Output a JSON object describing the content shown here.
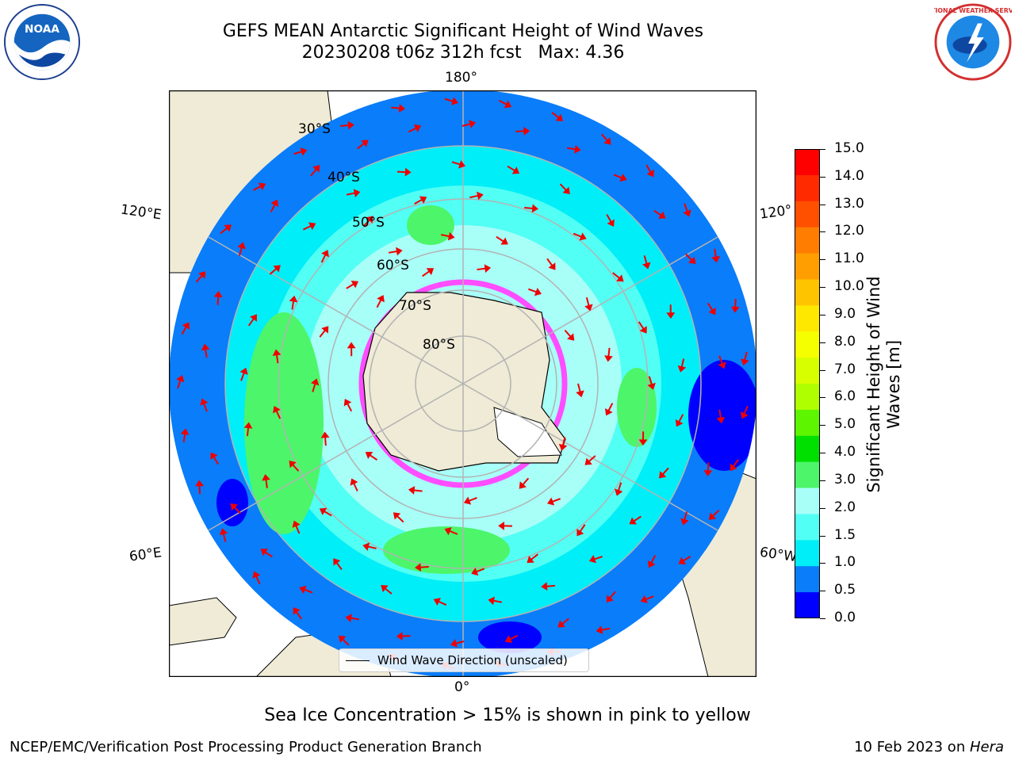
{
  "title": {
    "line1": "GEFS MEAN Antarctic Significant Height of Wind Waves",
    "line2": "20230208 t06z 312h fcst   Max: 4.36"
  },
  "logos": {
    "left": "noaa-logo-icon",
    "right": "nws-logo-icon",
    "left_text": "NOAA",
    "right_text": "NATIONAL WEATHER SERVICE"
  },
  "map": {
    "projection": "south-polar-stereographic",
    "lon_labels": {
      "top": "180°",
      "bottom": "0°",
      "upper_left": "120°E",
      "upper_right": "120°",
      "lower_left": "60°E",
      "lower_right": "60°W"
    },
    "lat_labels": [
      "30°S",
      "40°S",
      "50°S",
      "60°S",
      "70°S",
      "80°S"
    ]
  },
  "colorbar": {
    "label": "Significant Height of Wind\nWaves [m]",
    "ticks": [
      "15.0",
      "14.0",
      "13.0",
      "12.0",
      "11.0",
      "10.0",
      "9.0",
      "8.0",
      "7.0",
      "6.0",
      "5.0",
      "4.0",
      "3.0",
      "2.0",
      "1.5",
      "1.0",
      "0.5",
      "0.0"
    ],
    "colors": [
      "#ff0000",
      "#ff2a00",
      "#ff5000",
      "#ff7d00",
      "#ff9e00",
      "#ffc400",
      "#ffe800",
      "#f5ff00",
      "#d7ff00",
      "#b0ff00",
      "#5ef500",
      "#00e000",
      "#4df56a",
      "#a8fff8",
      "#52fff4",
      "#00eef7",
      "#0a7dfa",
      "#0000ff"
    ]
  },
  "legend": {
    "label": "Wind Wave Direction (unscaled)"
  },
  "subtitle": "Sea Ice Concentration > 15% is shown in pink to yellow",
  "footer": {
    "left": "NCEP/EMC/Verification Post Processing Product Generation Branch",
    "right_prefix": "10 Feb 2023 on ",
    "right_host": "Hera"
  }
}
